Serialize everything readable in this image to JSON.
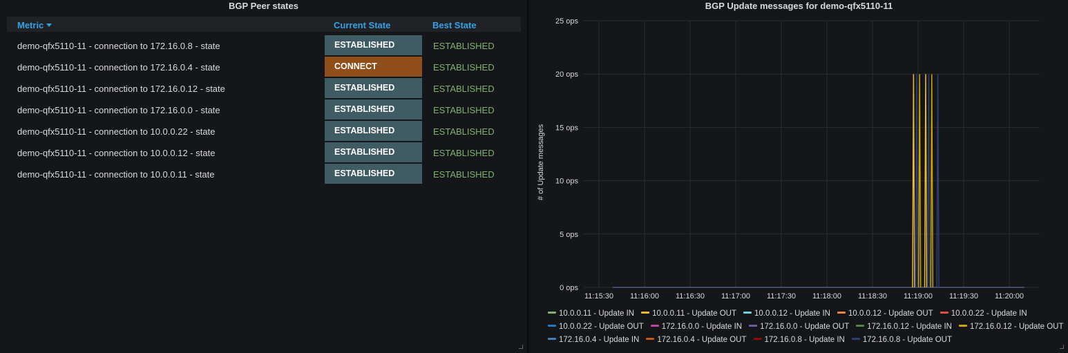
{
  "left_panel": {
    "title": "BGP Peer states",
    "headers": {
      "metric": "Metric",
      "current": "Current State",
      "best": "Best State"
    },
    "rows": [
      {
        "metric": "demo-qfx5110-11 - connection to 172.16.0.8 - state",
        "current": "ESTABLISHED",
        "best": "ESTABLISHED",
        "current_color": "#3f5b63"
      },
      {
        "metric": "demo-qfx5110-11 - connection to 172.16.0.4 - state",
        "current": "CONNECT",
        "best": "ESTABLISHED",
        "current_color": "#8f4e1a"
      },
      {
        "metric": "demo-qfx5110-11 - connection to 172.16.0.12 - state",
        "current": "ESTABLISHED",
        "best": "ESTABLISHED",
        "current_color": "#3f5b63"
      },
      {
        "metric": "demo-qfx5110-11 - connection to 172.16.0.0 - state",
        "current": "ESTABLISHED",
        "best": "ESTABLISHED",
        "current_color": "#3f5b63"
      },
      {
        "metric": "demo-qfx5110-11 - connection to 10.0.0.22 - state",
        "current": "ESTABLISHED",
        "best": "ESTABLISHED",
        "current_color": "#3f5b63"
      },
      {
        "metric": "demo-qfx5110-11 - connection to 10.0.0.12 - state",
        "current": "ESTABLISHED",
        "best": "ESTABLISHED",
        "current_color": "#3f5b63"
      },
      {
        "metric": "demo-qfx5110-11 - connection to 10.0.0.11 - state",
        "current": "ESTABLISHED",
        "best": "ESTABLISHED",
        "current_color": "#3f5b63"
      }
    ]
  },
  "right_panel": {
    "title": "BGP Update messages for demo-qfx5110-11"
  },
  "chart_data": {
    "type": "line",
    "title": "BGP Update messages for demo-qfx5110-11",
    "ylabel": "# of Update messages",
    "xlabel": "",
    "ylim": [
      0,
      25
    ],
    "y_ticks": [
      "0 ops",
      "5 ops",
      "10 ops",
      "15 ops",
      "20 ops",
      "25 ops"
    ],
    "y_tick_values": [
      0,
      5,
      10,
      15,
      20,
      25
    ],
    "x_ticks": [
      "11:15:30",
      "11:16:00",
      "11:16:30",
      "11:17:00",
      "11:17:30",
      "11:18:00",
      "11:18:30",
      "11:19:00",
      "11:19:30",
      "11:20:00"
    ],
    "x_range": [
      "11:15:20",
      "11:20:20"
    ],
    "grid": true,
    "legend_position": "bottom",
    "series": [
      {
        "name": "10.0.0.11 - Update IN",
        "color": "#7eb26d",
        "spikes": []
      },
      {
        "name": "10.0.0.11 - Update OUT",
        "color": "#eab839",
        "spikes": [
          [
            "11:18:57",
            20
          ],
          [
            "11:19:05",
            20
          ]
        ]
      },
      {
        "name": "10.0.0.12 - Update IN",
        "color": "#6ed0e0",
        "spikes": []
      },
      {
        "name": "10.0.0.12 - Update OUT",
        "color": "#ef843c",
        "spikes": []
      },
      {
        "name": "10.0.0.22 - Update IN",
        "color": "#e24d42",
        "spikes": []
      },
      {
        "name": "10.0.0.22 - Update OUT",
        "color": "#1f78c1",
        "spikes": []
      },
      {
        "name": "172.16.0.0 - Update IN",
        "color": "#ba43a9",
        "spikes": []
      },
      {
        "name": "172.16.0.0 - Update OUT",
        "color": "#705da0",
        "spikes": []
      },
      {
        "name": "172.16.0.12 - Update IN",
        "color": "#508642",
        "spikes": []
      },
      {
        "name": "172.16.0.12 - Update OUT",
        "color": "#cca300",
        "spikes": [
          [
            "11:19:01",
            20
          ],
          [
            "11:19:09",
            20
          ]
        ]
      },
      {
        "name": "172.16.0.4 - Update IN",
        "color": "#447ebc",
        "spikes": []
      },
      {
        "name": "172.16.0.4 - Update OUT",
        "color": "#c15c17",
        "spikes": []
      },
      {
        "name": "172.16.0.8 - Update IN",
        "color": "#890f02",
        "spikes": []
      },
      {
        "name": "172.16.0.8 - Update OUT",
        "color": "#2c3e6e",
        "spikes": [
          [
            "11:18:59",
            20
          ],
          [
            "11:19:07",
            20
          ],
          [
            "11:19:13",
            20
          ]
        ]
      }
    ]
  }
}
